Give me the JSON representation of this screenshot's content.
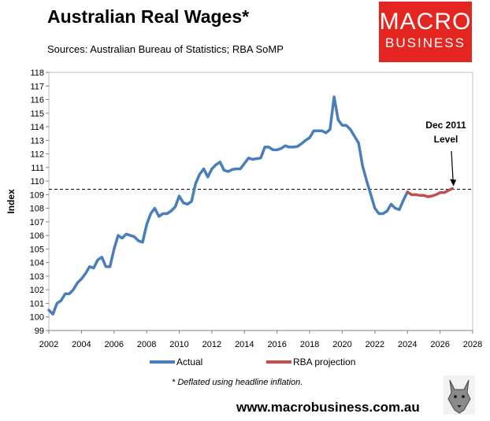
{
  "title": "Australian Real Wages*",
  "sources": "Sources: Australian Bureau of Statistics; RBA SoMP",
  "logo": {
    "line1": "MACRO",
    "line2": "BUSINESS"
  },
  "footnote": "* Deflated using headline inflation.",
  "website": "www.macrobusiness.com.au",
  "colors": {
    "actual": "#4a7ebb",
    "projection": "#c0504d",
    "logo_bg": "#e3261f"
  },
  "chart_data": {
    "type": "line",
    "ylabel": "Index",
    "xlabel": "",
    "xlim": [
      2002,
      2028
    ],
    "ylim": [
      99,
      118
    ],
    "x_ticks": [
      "2002",
      "2004",
      "2006",
      "2008",
      "2010",
      "2012",
      "2014",
      "2016",
      "2018",
      "2020",
      "2022",
      "2024",
      "2026",
      "2028"
    ],
    "y_ticks": [
      "99",
      "100",
      "101",
      "102",
      "103",
      "104",
      "105",
      "106",
      "107",
      "108",
      "109",
      "110",
      "111",
      "112",
      "113",
      "114",
      "115",
      "116",
      "117",
      "118"
    ],
    "legend_position": "bottom",
    "grid": false,
    "series": [
      {
        "name": "Actual",
        "x": [
          2002.0,
          2002.25,
          2002.5,
          2002.75,
          2003.0,
          2003.25,
          2003.5,
          2003.75,
          2004.0,
          2004.25,
          2004.5,
          2004.75,
          2005.0,
          2005.25,
          2005.5,
          2005.75,
          2006.0,
          2006.25,
          2006.5,
          2006.75,
          2007.0,
          2007.25,
          2007.5,
          2007.75,
          2008.0,
          2008.25,
          2008.5,
          2008.75,
          2009.0,
          2009.25,
          2009.5,
          2009.75,
          2010.0,
          2010.25,
          2010.5,
          2010.75,
          2011.0,
          2011.25,
          2011.5,
          2011.75,
          2012.0,
          2012.25,
          2012.5,
          2012.75,
          2013.0,
          2013.25,
          2013.5,
          2013.75,
          2014.0,
          2014.25,
          2014.5,
          2014.75,
          2015.0,
          2015.25,
          2015.5,
          2015.75,
          2016.0,
          2016.25,
          2016.5,
          2016.75,
          2017.0,
          2017.25,
          2017.5,
          2017.75,
          2018.0,
          2018.25,
          2018.5,
          2018.75,
          2019.0,
          2019.25,
          2019.5,
          2019.75,
          2020.0,
          2020.25,
          2020.5,
          2020.75,
          2021.0,
          2021.25,
          2021.5,
          2021.75,
          2022.0,
          2022.25,
          2022.5,
          2022.75,
          2023.0,
          2023.25,
          2023.5,
          2023.75,
          2024.0
        ],
        "values": [
          100.5,
          100.2,
          101.0,
          101.2,
          101.7,
          101.7,
          102.0,
          102.5,
          102.8,
          103.2,
          103.7,
          103.6,
          104.2,
          104.4,
          103.7,
          103.7,
          105.0,
          106.0,
          105.8,
          106.1,
          106.0,
          105.9,
          105.6,
          105.5,
          106.8,
          107.6,
          108.0,
          107.4,
          107.6,
          107.6,
          107.8,
          108.1,
          108.9,
          108.4,
          108.3,
          108.5,
          109.8,
          110.5,
          110.9,
          110.3,
          110.9,
          111.2,
          111.4,
          110.8,
          110.7,
          110.85,
          110.9,
          110.9,
          111.3,
          111.7,
          111.6,
          111.65,
          111.7,
          112.5,
          112.5,
          112.3,
          112.3,
          112.4,
          112.6,
          112.5,
          112.5,
          112.55,
          112.75,
          113.0,
          113.2,
          113.7,
          113.7,
          113.7,
          113.55,
          113.8,
          116.2,
          114.5,
          114.1,
          114.1,
          113.8,
          113.3,
          112.8,
          111.1,
          110.0,
          109.0,
          108.0,
          107.6,
          107.6,
          107.8,
          108.3,
          108.0,
          107.9,
          108.6,
          109.2
        ]
      },
      {
        "name": "RBA projection",
        "x": [
          2024.0,
          2024.25,
          2024.5,
          2024.75,
          2025.0,
          2025.25,
          2025.5,
          2025.75,
          2026.0,
          2026.25,
          2026.5,
          2026.75
        ],
        "values": [
          109.2,
          109.0,
          109.0,
          108.95,
          108.95,
          108.85,
          108.9,
          109.0,
          109.15,
          109.15,
          109.3,
          109.45
        ]
      }
    ],
    "reference_line": {
      "value": 109.4,
      "style": "dashed"
    },
    "annotation": {
      "line1": "Dec 2011",
      "line2": "Level",
      "x": 2026.75,
      "y": 109.45
    }
  }
}
